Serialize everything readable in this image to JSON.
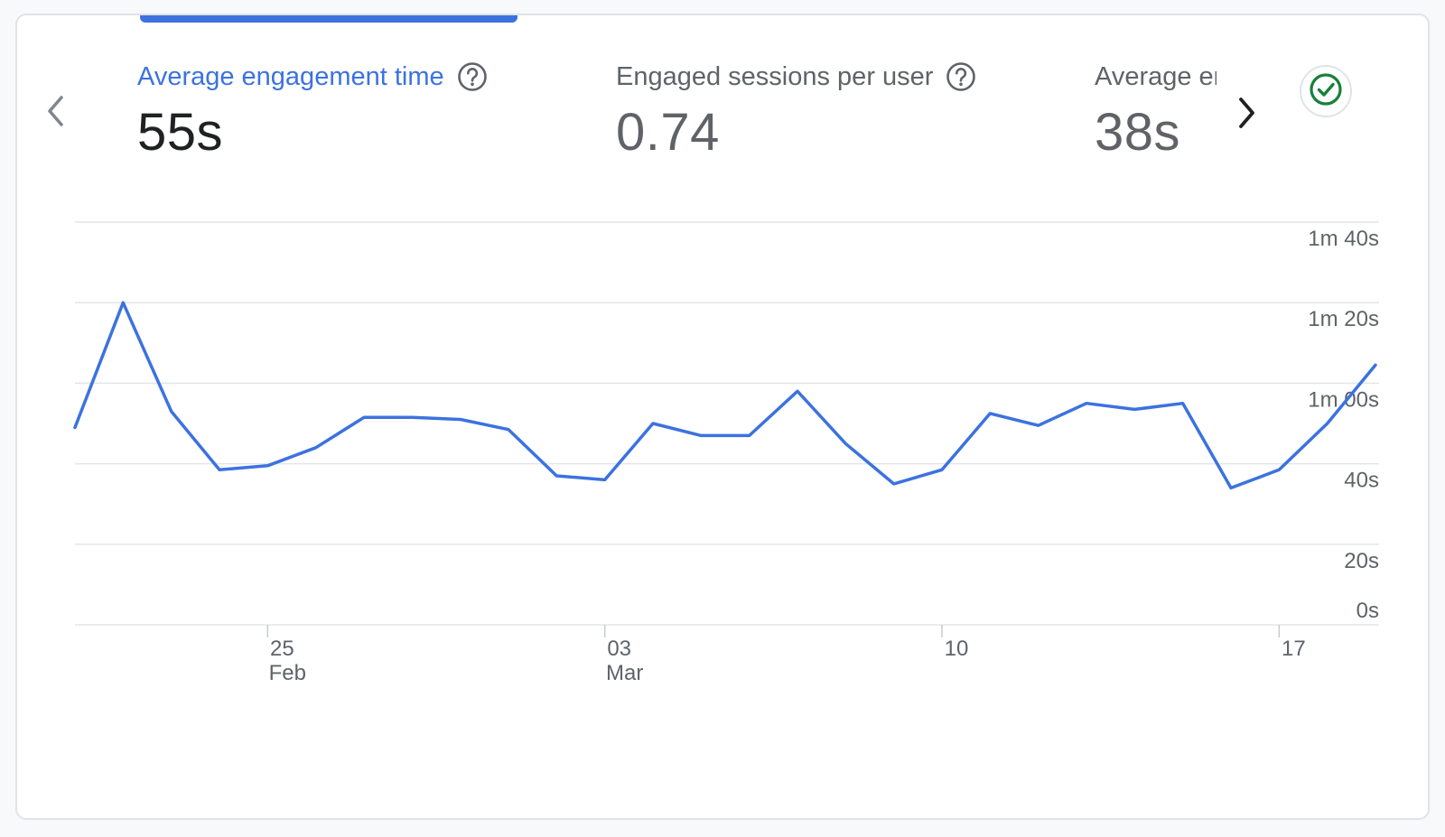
{
  "metrics": [
    {
      "title": "Average engagement time",
      "value": "55s",
      "active": true
    },
    {
      "title": "Engaged sessions per user",
      "value": "0.74",
      "active": false
    },
    {
      "title": "Average engagement time per session",
      "value": "38s",
      "active": false
    }
  ],
  "icons": {
    "prev": "chevron-left-icon",
    "next": "chevron-right-icon",
    "help": "help-circle-icon",
    "status": "check-circle-icon"
  },
  "colors": {
    "accent": "#3c72e0",
    "status_green": "#188038",
    "text_muted": "#5f6368"
  },
  "chart_data": {
    "type": "line",
    "y_ticks": [
      {
        "seconds": 100,
        "label": "1m 40s"
      },
      {
        "seconds": 80,
        "label": "1m 20s"
      },
      {
        "seconds": 60,
        "label": "1m 00s"
      },
      {
        "seconds": 40,
        "label": "40s"
      },
      {
        "seconds": 20,
        "label": "20s"
      },
      {
        "seconds": 0,
        "label": "0s"
      }
    ],
    "ylim": [
      0,
      100
    ],
    "x_ticks": [
      {
        "day": "25",
        "month": "Feb"
      },
      {
        "day": "03",
        "month": "Mar"
      },
      {
        "day": "10",
        "month": ""
      },
      {
        "day": "17",
        "month": ""
      }
    ],
    "x": [
      "Feb 21",
      "Feb 22",
      "Feb 23",
      "Feb 24",
      "Feb 25",
      "Feb 26",
      "Feb 27",
      "Feb 28",
      "Feb 29",
      "Mar 01",
      "Mar 02",
      "Mar 03",
      "Mar 04",
      "Mar 05",
      "Mar 06",
      "Mar 07",
      "Mar 08",
      "Mar 09",
      "Mar 10",
      "Mar 11",
      "Mar 12",
      "Mar 13",
      "Mar 14",
      "Mar 15",
      "Mar 16",
      "Mar 17",
      "Mar 18",
      "Mar 19"
    ],
    "series": [
      {
        "values": [
          49,
          80,
          53,
          38.5,
          39.5,
          44,
          51.5,
          51.5,
          51,
          48.5,
          37,
          36,
          50,
          47,
          47,
          58,
          45,
          35,
          38.5,
          52.5,
          49.5,
          55,
          53.5,
          55,
          34,
          38.5,
          50,
          64.5
        ]
      }
    ],
    "grid": true,
    "y_axis_side": "right"
  }
}
